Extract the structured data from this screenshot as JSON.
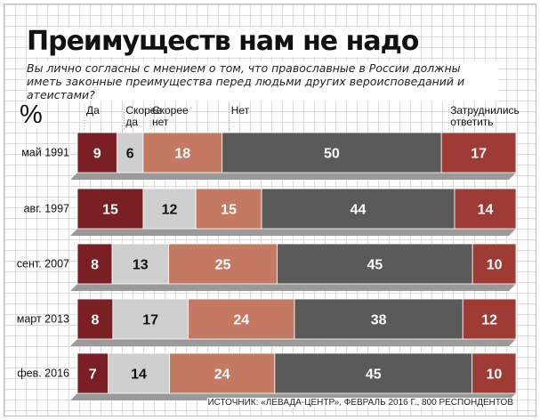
{
  "chart_data": {
    "type": "bar",
    "stacked": true,
    "orientation": "horizontal",
    "title": "Преимуществ нам не надо",
    "subtitle": "Вы лично согласны с мнением о том, что православные в России должны иметь законные преимущества перед людьми других вероисповеданий и атеистами?",
    "unit_label": "%",
    "categories": [
      "май 1991",
      "авг. 1997",
      "сент. 2007",
      "март 2013",
      "фев. 2016"
    ],
    "series": [
      {
        "name": "Да",
        "color": "#7a1f24",
        "values": [
          9,
          15,
          8,
          8,
          7
        ]
      },
      {
        "name": "Скорее да",
        "color": "#cfcfcf",
        "values": [
          6,
          12,
          13,
          17,
          14
        ]
      },
      {
        "name": "Скорее нет",
        "color": "#c47a62",
        "values": [
          18,
          15,
          25,
          24,
          24
        ]
      },
      {
        "name": "Нет",
        "color": "#5a5a5a",
        "values": [
          50,
          44,
          45,
          38,
          45
        ]
      },
      {
        "name": "Затруднились ответить",
        "color": "#9e3b35",
        "values": [
          17,
          14,
          10,
          12,
          10
        ]
      }
    ],
    "source": "ИСТОЧНИК: «ЛЕВАДА-ЦЕНТР», ФЕВРАЛЬ 2016 Г., 800 РЕСПОНДЕНТОВ"
  }
}
